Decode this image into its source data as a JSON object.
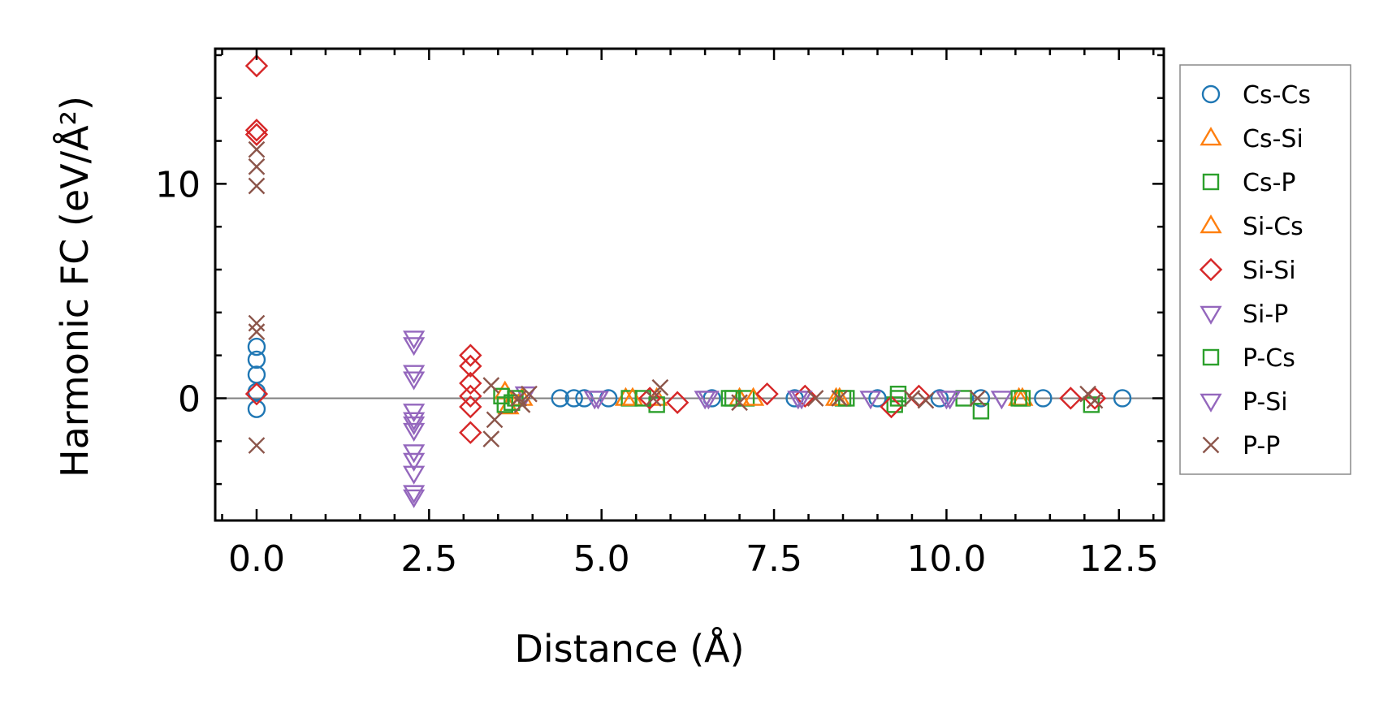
{
  "chart_data": {
    "type": "scatter",
    "xlabel": "Distance (Å)",
    "ylabel": "Harmonic FC (eV/Å²)",
    "xlim": [
      -0.6,
      13.15
    ],
    "ylim": [
      -5.7,
      16.3
    ],
    "x_ticks": [
      0.0,
      2.5,
      5.0,
      7.5,
      10.0,
      12.5
    ],
    "x_tick_labels": [
      "0.0",
      "2.5",
      "5.0",
      "7.5",
      "10.0",
      "12.5"
    ],
    "y_ticks": [
      0,
      10
    ],
    "y_tick_labels": [
      "0",
      "10"
    ],
    "x_minor_step": 0.5,
    "y_minor_step": 2,
    "zero_line": true,
    "legend_position": "outside-right",
    "series": [
      {
        "name": "Cs-Cs",
        "marker": "circle",
        "color": "#1f77b4",
        "points": [
          [
            0,
            -0.5
          ],
          [
            0,
            0.3
          ],
          [
            0,
            1.1
          ],
          [
            0,
            1.8
          ],
          [
            0,
            2.4
          ],
          [
            4.4,
            0.0
          ],
          [
            4.6,
            0.0
          ],
          [
            4.75,
            0.0
          ],
          [
            5.1,
            0.0
          ],
          [
            6.6,
            0.0
          ],
          [
            7.8,
            0.0
          ],
          [
            9.0,
            0.0
          ],
          [
            9.9,
            0.0
          ],
          [
            10.5,
            0.0
          ],
          [
            11.4,
            0.0
          ],
          [
            12.55,
            0.0
          ]
        ]
      },
      {
        "name": "Cs-Si",
        "marker": "triangle-up",
        "color": "#ff7f0e",
        "points": [
          [
            3.6,
            0.3
          ],
          [
            3.65,
            -0.4
          ],
          [
            5.35,
            0.0
          ],
          [
            5.8,
            0.0
          ],
          [
            7.0,
            0.0
          ],
          [
            8.4,
            0.0
          ],
          [
            11.1,
            0.0
          ]
        ]
      },
      {
        "name": "Cs-P",
        "marker": "square",
        "color": "#2ca02c",
        "points": [
          [
            3.55,
            0.1
          ],
          [
            3.6,
            -0.3
          ],
          [
            3.7,
            -0.2
          ],
          [
            5.4,
            0.0
          ],
          [
            5.8,
            -0.3
          ],
          [
            6.85,
            0.0
          ],
          [
            7.1,
            0.0
          ],
          [
            8.5,
            0.0
          ],
          [
            9.25,
            -0.3
          ],
          [
            9.3,
            0.2
          ],
          [
            10.25,
            0.0
          ],
          [
            10.5,
            -0.6
          ],
          [
            11.1,
            0.0
          ],
          [
            12.1,
            -0.3
          ]
        ]
      },
      {
        "name": "Si-Cs",
        "marker": "triangle-up",
        "color": "#ff7f0e",
        "points": [
          [
            3.85,
            0.0
          ],
          [
            5.45,
            0.0
          ],
          [
            7.2,
            0.0
          ],
          [
            8.45,
            0.0
          ],
          [
            11.05,
            0.0
          ]
        ]
      },
      {
        "name": "Si-Si",
        "marker": "diamond",
        "color": "#d62728",
        "points": [
          [
            0,
            15.5
          ],
          [
            0,
            12.5
          ],
          [
            0,
            12.3
          ],
          [
            0,
            0.2
          ],
          [
            3.1,
            2.0
          ],
          [
            3.1,
            1.5
          ],
          [
            3.1,
            0.7
          ],
          [
            3.1,
            0.1
          ],
          [
            3.1,
            -0.4
          ],
          [
            3.1,
            -1.6
          ],
          [
            5.7,
            0.0
          ],
          [
            6.1,
            -0.2
          ],
          [
            7.4,
            0.2
          ],
          [
            7.95,
            0.1
          ],
          [
            9.2,
            -0.4
          ],
          [
            9.6,
            0.1
          ],
          [
            11.8,
            0.0
          ],
          [
            12.15,
            0.0
          ]
        ]
      },
      {
        "name": "Si-P",
        "marker": "triangle-down",
        "color": "#9467bd",
        "points": [
          [
            2.28,
            2.8
          ],
          [
            2.28,
            2.5
          ],
          [
            2.28,
            1.2
          ],
          [
            2.28,
            0.9
          ],
          [
            2.28,
            -0.6
          ],
          [
            2.28,
            -1.0
          ],
          [
            2.28,
            -1.2
          ],
          [
            2.28,
            -1.5
          ],
          [
            2.28,
            -2.5
          ],
          [
            2.28,
            -2.9
          ],
          [
            2.28,
            -3.5
          ],
          [
            2.28,
            -4.4
          ],
          [
            2.28,
            -4.6
          ],
          [
            3.9,
            0.2
          ],
          [
            4.9,
            0.0
          ],
          [
            6.5,
            0.0
          ],
          [
            7.85,
            0.0
          ],
          [
            8.9,
            0.0
          ],
          [
            10.05,
            0.0
          ],
          [
            10.8,
            0.0
          ]
        ]
      },
      {
        "name": "P-Cs",
        "marker": "square",
        "color": "#2ca02c",
        "points": [
          [
            3.75,
            0.0
          ],
          [
            5.6,
            0.0
          ],
          [
            6.9,
            0.0
          ],
          [
            8.55,
            0.0
          ],
          [
            9.3,
            0.0
          ],
          [
            11.05,
            0.0
          ]
        ]
      },
      {
        "name": "P-Si",
        "marker": "triangle-down",
        "color": "#9467bd",
        "points": [
          [
            4.95,
            0.0
          ],
          [
            6.55,
            0.0
          ],
          [
            7.9,
            0.0
          ],
          [
            10.0,
            0.0
          ]
        ]
      },
      {
        "name": "P-P",
        "marker": "x",
        "color": "#8c564b",
        "points": [
          [
            0,
            11.6
          ],
          [
            0,
            10.8
          ],
          [
            0,
            9.9
          ],
          [
            0,
            3.5
          ],
          [
            0,
            3.1
          ],
          [
            0,
            -2.2
          ],
          [
            3.4,
            0.6
          ],
          [
            3.4,
            -1.9
          ],
          [
            3.45,
            -1.0
          ],
          [
            3.8,
            0.0
          ],
          [
            3.85,
            -0.3
          ],
          [
            3.95,
            0.2
          ],
          [
            5.85,
            0.5
          ],
          [
            5.75,
            0.0
          ],
          [
            7.0,
            -0.2
          ],
          [
            8.1,
            0.0
          ],
          [
            8.45,
            0.0
          ],
          [
            9.5,
            0.0
          ],
          [
            9.7,
            -0.1
          ],
          [
            10.45,
            0.0
          ],
          [
            12.05,
            0.2
          ],
          [
            12.15,
            -0.1
          ]
        ]
      }
    ]
  }
}
